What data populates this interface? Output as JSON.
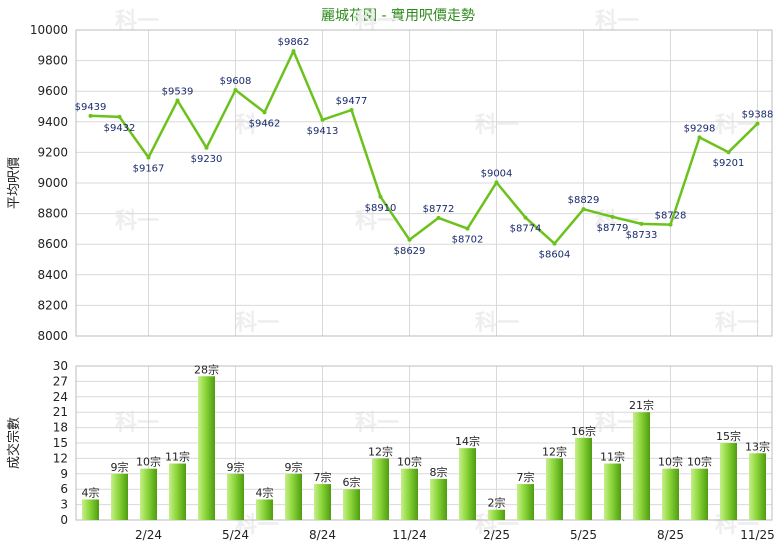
{
  "title": "麗城花園 - 實用呎價走勢",
  "colors": {
    "title": "#2e8b1e",
    "line": "#6cc21c",
    "bar_light": "#c6ef8a",
    "bar_dark": "#4e9c10",
    "grid": "#d9d9d9"
  },
  "chart_data": [
    {
      "type": "line",
      "ylabel": "平均呎價",
      "ylim": [
        8000,
        10000
      ],
      "yticks": [
        8000,
        8200,
        8400,
        8600,
        8800,
        9000,
        9200,
        9400,
        9600,
        9800,
        10000
      ],
      "grid": true,
      "values": [
        9439,
        9432,
        9167,
        9539,
        9230,
        9608,
        9462,
        9862,
        9413,
        9477,
        8910,
        8629,
        8772,
        8702,
        9004,
        8774,
        8604,
        8829,
        8779,
        8733,
        8728,
        9298,
        9201,
        9388
      ],
      "point_labels": [
        "$9439",
        "$9432",
        "$9167",
        "$9539",
        "$9230",
        "$9608",
        "$9462",
        "$9862",
        "$9413",
        "$9477",
        "$8910",
        "$8629",
        "$8772",
        "$8702",
        "$9004",
        "$8774",
        "$8604",
        "$8829",
        "$8779",
        "$8733",
        "$8728",
        "$9298",
        "$9201",
        "$9388"
      ]
    },
    {
      "type": "bar",
      "ylabel": "成交宗數",
      "ylim": [
        0,
        30
      ],
      "yticks": [
        0,
        3,
        6,
        9,
        12,
        15,
        18,
        21,
        24,
        27,
        30
      ],
      "grid": true,
      "values": [
        4,
        9,
        10,
        11,
        28,
        9,
        4,
        9,
        7,
        6,
        12,
        10,
        8,
        14,
        2,
        7,
        12,
        16,
        11,
        21,
        10,
        10,
        15,
        13
      ],
      "bar_labels": [
        "4宗",
        "9宗",
        "10宗",
        "11宗",
        "28宗",
        "9宗",
        "4宗",
        "9宗",
        "7宗",
        "6宗",
        "12宗",
        "10宗",
        "8宗",
        "14宗",
        "2宗",
        "7宗",
        "12宗",
        "16宗",
        "11宗",
        "21宗",
        "10宗",
        "10宗",
        "15宗",
        "13宗"
      ]
    }
  ],
  "x_tick_labels": [
    "2/24",
    "5/24",
    "8/24",
    "11/24",
    "2/25",
    "5/25",
    "8/25",
    "11/25"
  ],
  "x_tick_indices": [
    2,
    5,
    8,
    11,
    14,
    17,
    20,
    23
  ]
}
